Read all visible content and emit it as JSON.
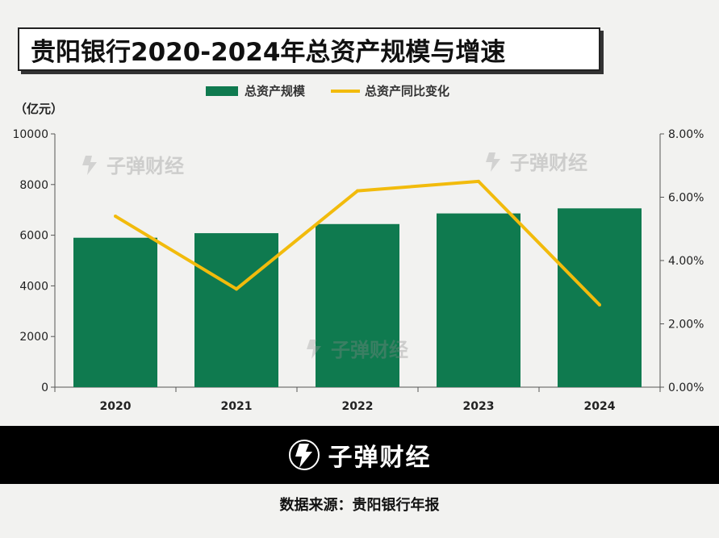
{
  "title": "贵阳银行2020-2024年总资产规模与增速",
  "unit_label": "（亿元）",
  "watermark": "子弹财经",
  "footer": {
    "brand": "子弹财经",
    "source": "数据来源：贵阳银行年报"
  },
  "colors": {
    "bar": "#0f7a4f",
    "line": "#f2bb0c"
  },
  "chart_data": {
    "type": "bar",
    "categories": [
      "2020",
      "2021",
      "2022",
      "2023",
      "2024"
    ],
    "series": [
      {
        "name": "总资产规模",
        "type": "bar",
        "axis": "left",
        "values": [
          5900,
          6080,
          6440,
          6860,
          7060
        ]
      },
      {
        "name": "总资产同比变化",
        "type": "line",
        "axis": "right",
        "values": [
          5.4,
          3.1,
          6.2,
          6.5,
          2.6
        ]
      }
    ],
    "y_left": {
      "ylim": [
        0,
        10000
      ],
      "ticks": [
        "0",
        "2000",
        "4000",
        "6000",
        "8000",
        "10000"
      ]
    },
    "y_right": {
      "ylim": [
        0,
        8
      ],
      "ticks": [
        "0.00%",
        "2.00%",
        "4.00%",
        "6.00%",
        "8.00%"
      ]
    },
    "legend": "top-center",
    "grid": false
  }
}
